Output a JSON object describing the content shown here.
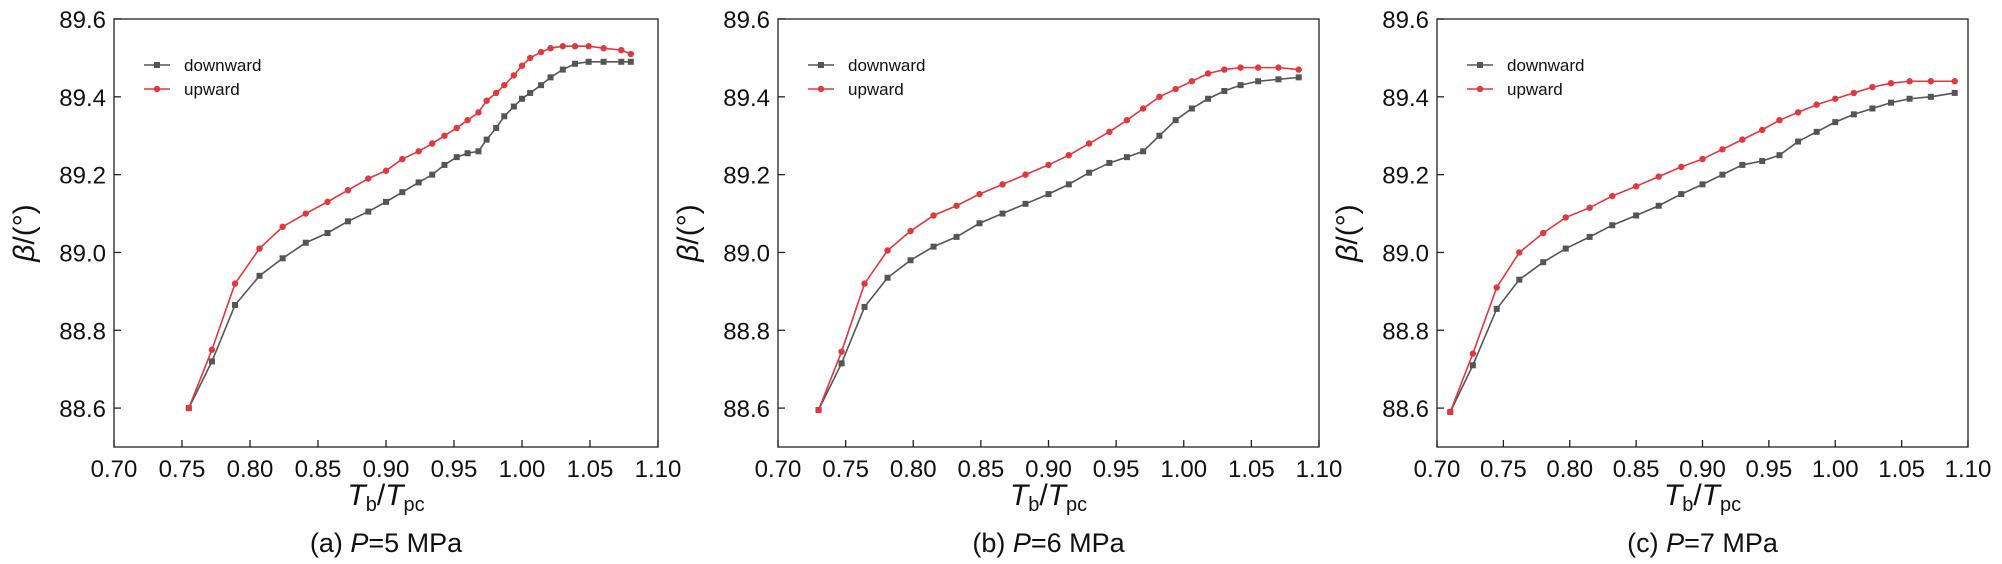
{
  "chart_data": [
    {
      "type": "line",
      "title": [
        "(a) ",
        "P",
        "=5 MPa"
      ],
      "x_label": [
        "T",
        "b",
        "/",
        "T",
        "pc"
      ],
      "y_label": [
        "β",
        "/(°)"
      ],
      "xlim": [
        0.7,
        1.1
      ],
      "ylim": [
        88.5,
        89.6
      ],
      "xticks": [
        {
          "value": 0.7,
          "label": "0.70"
        },
        0.75,
        {
          "value": 0.8,
          "label": "0.80"
        },
        0.85,
        {
          "value": 0.9,
          "label": "0.90"
        },
        0.95,
        {
          "value": 1.0,
          "label": "1.00"
        },
        1.05,
        {
          "value": 1.1,
          "label": "1.10"
        }
      ],
      "yticks": [
        88.6,
        88.8,
        {
          "value": 89.0,
          "label": "89.0"
        },
        89.2,
        89.4,
        89.6
      ],
      "legend": "upper left",
      "x": [
        0.755,
        0.772,
        0.789,
        0.807,
        0.824,
        0.841,
        0.857,
        0.872,
        0.887,
        0.9,
        0.912,
        0.924,
        0.934,
        0.943,
        0.952,
        0.96,
        0.968,
        0.974,
        0.981,
        0.987,
        0.994,
        1.0,
        1.006,
        1.014,
        1.021,
        1.03,
        1.039,
        1.049,
        1.06,
        1.073,
        1.08
      ],
      "series": [
        {
          "name": "downward",
          "color": "#555555",
          "marker": "square",
          "values": [
            88.6,
            88.72,
            88.865,
            88.94,
            88.985,
            89.025,
            89.05,
            89.08,
            89.105,
            89.13,
            89.155,
            89.18,
            89.2,
            89.225,
            89.245,
            89.255,
            89.26,
            89.29,
            89.32,
            89.35,
            89.375,
            89.395,
            89.41,
            89.43,
            89.45,
            89.47,
            89.485,
            89.49,
            89.49,
            89.49,
            89.49
          ]
        },
        {
          "name": "upward",
          "color": "#e0383e",
          "marker": "circle",
          "values": [
            88.6,
            88.75,
            88.92,
            89.01,
            89.066,
            89.1,
            89.13,
            89.16,
            89.19,
            89.21,
            89.24,
            89.26,
            89.28,
            89.3,
            89.32,
            89.34,
            89.36,
            89.39,
            89.41,
            89.43,
            89.455,
            89.48,
            89.5,
            89.515,
            89.525,
            89.53,
            89.53,
            89.53,
            89.525,
            89.52,
            89.51
          ]
        }
      ]
    },
    {
      "type": "line",
      "title": [
        "(b) ",
        "P",
        "=6 MPa"
      ],
      "x_label": [
        "T",
        "b",
        "/",
        "T",
        "pc"
      ],
      "y_label": [
        "β",
        "/(°)"
      ],
      "xlim": [
        0.7,
        1.1
      ],
      "ylim": [
        88.5,
        89.6
      ],
      "xticks": [
        {
          "value": 0.7,
          "label": "0.70"
        },
        0.75,
        {
          "value": 0.8,
          "label": "0.80"
        },
        0.85,
        {
          "value": 0.9,
          "label": "0.90"
        },
        0.95,
        {
          "value": 1.0,
          "label": "1.00"
        },
        1.05,
        {
          "value": 1.1,
          "label": "1.10"
        }
      ],
      "yticks": [
        88.6,
        88.8,
        {
          "value": 89.0,
          "label": "89.0"
        },
        89.2,
        89.4,
        89.6
      ],
      "legend": "upper left",
      "x": [
        0.73,
        0.747,
        0.764,
        0.781,
        0.798,
        0.815,
        0.832,
        0.849,
        0.866,
        0.883,
        0.9,
        0.915,
        0.93,
        0.945,
        0.958,
        0.97,
        0.982,
        0.994,
        1.006,
        1.018,
        1.03,
        1.042,
        1.055,
        1.07,
        1.085
      ],
      "series": [
        {
          "name": "downward",
          "color": "#555555",
          "marker": "square",
          "values": [
            88.595,
            88.715,
            88.86,
            88.935,
            88.98,
            89.015,
            89.04,
            89.075,
            89.1,
            89.125,
            89.15,
            89.175,
            89.205,
            89.23,
            89.245,
            89.26,
            89.3,
            89.34,
            89.37,
            89.395,
            89.415,
            89.43,
            89.44,
            89.445,
            89.45
          ]
        },
        {
          "name": "upward",
          "color": "#e0383e",
          "marker": "circle",
          "values": [
            88.595,
            88.745,
            88.92,
            89.005,
            89.055,
            89.095,
            89.12,
            89.15,
            89.175,
            89.2,
            89.225,
            89.25,
            89.28,
            89.31,
            89.34,
            89.37,
            89.4,
            89.42,
            89.44,
            89.46,
            89.47,
            89.475,
            89.475,
            89.475,
            89.47
          ]
        }
      ]
    },
    {
      "type": "line",
      "title": [
        "(c) ",
        "P",
        "=7 MPa"
      ],
      "x_label": [
        "T",
        "b",
        "/",
        "T",
        "pc"
      ],
      "y_label": [
        "β",
        "/(°)"
      ],
      "xlim": [
        0.7,
        1.1
      ],
      "ylim": [
        88.5,
        89.6
      ],
      "xticks": [
        {
          "value": 0.7,
          "label": "0.70"
        },
        0.75,
        {
          "value": 0.8,
          "label": "0.80"
        },
        0.85,
        {
          "value": 0.9,
          "label": "0.90"
        },
        0.95,
        {
          "value": 1.0,
          "label": "1.00"
        },
        1.05,
        {
          "value": 1.1,
          "label": "1.10"
        }
      ],
      "yticks": [
        88.6,
        88.8,
        {
          "value": 89.0,
          "label": "89.0"
        },
        89.2,
        89.4,
        89.6
      ],
      "legend": "upper left",
      "x": [
        0.71,
        0.727,
        0.745,
        0.762,
        0.78,
        0.797,
        0.815,
        0.832,
        0.85,
        0.867,
        0.884,
        0.9,
        0.915,
        0.93,
        0.945,
        0.958,
        0.972,
        0.986,
        1.0,
        1.014,
        1.028,
        1.042,
        1.056,
        1.072,
        1.09
      ],
      "series": [
        {
          "name": "downward",
          "color": "#555555",
          "marker": "square",
          "values": [
            88.59,
            88.71,
            88.855,
            88.93,
            88.975,
            89.01,
            89.04,
            89.07,
            89.095,
            89.12,
            89.15,
            89.175,
            89.2,
            89.225,
            89.235,
            89.25,
            89.285,
            89.31,
            89.335,
            89.355,
            89.37,
            89.385,
            89.395,
            89.4,
            89.41
          ]
        },
        {
          "name": "upward",
          "color": "#e0383e",
          "marker": "circle",
          "values": [
            88.59,
            88.74,
            88.91,
            89.0,
            89.05,
            89.09,
            89.115,
            89.145,
            89.17,
            89.195,
            89.22,
            89.24,
            89.265,
            89.29,
            89.315,
            89.34,
            89.36,
            89.38,
            89.395,
            89.41,
            89.425,
            89.435,
            89.44,
            89.44,
            89.44
          ]
        }
      ]
    }
  ]
}
